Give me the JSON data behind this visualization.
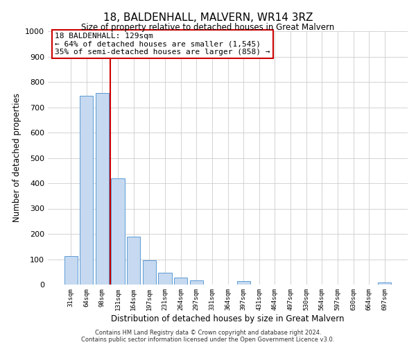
{
  "title": "18, BALDENHALL, MALVERN, WR14 3RZ",
  "subtitle": "Size of property relative to detached houses in Great Malvern",
  "xlabel": "Distribution of detached houses by size in Great Malvern",
  "ylabel": "Number of detached properties",
  "bar_labels": [
    "31sqm",
    "64sqm",
    "98sqm",
    "131sqm",
    "164sqm",
    "197sqm",
    "231sqm",
    "264sqm",
    "297sqm",
    "331sqm",
    "364sqm",
    "397sqm",
    "431sqm",
    "464sqm",
    "497sqm",
    "530sqm",
    "564sqm",
    "597sqm",
    "630sqm",
    "664sqm",
    "697sqm"
  ],
  "bar_values": [
    113,
    745,
    755,
    420,
    190,
    96,
    47,
    27,
    17,
    0,
    0,
    15,
    0,
    0,
    0,
    0,
    0,
    0,
    0,
    0,
    7
  ],
  "bar_color": "#c6d9f0",
  "bar_edge_color": "#5b9bd5",
  "ylim": [
    0,
    1000
  ],
  "yticks": [
    0,
    100,
    200,
    300,
    400,
    500,
    600,
    700,
    800,
    900,
    1000
  ],
  "property_line_color": "#cc0000",
  "annotation_title": "18 BALDENHALL: 129sqm",
  "annotation_line1": "← 64% of detached houses are smaller (1,545)",
  "annotation_line2": "35% of semi-detached houses are larger (858) →",
  "annotation_box_color": "#cc0000",
  "footer_line1": "Contains HM Land Registry data © Crown copyright and database right 2024.",
  "footer_line2": "Contains public sector information licensed under the Open Government Licence v3.0.",
  "background_color": "#ffffff",
  "grid_color": "#cccccc"
}
